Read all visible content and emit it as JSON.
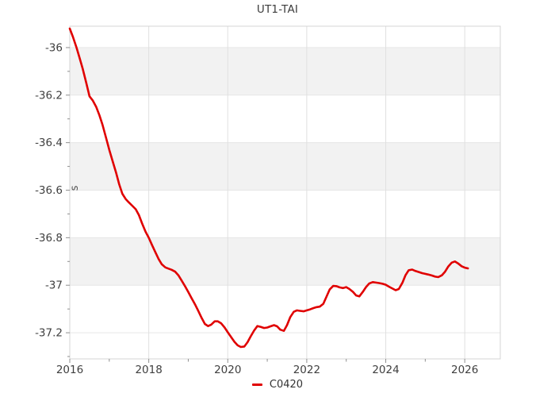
{
  "chart": {
    "title": "UT1-TAI",
    "legend": [
      {
        "label": "C0420"
      }
    ]
  },
  "style": {
    "line_color": "#e00000",
    "band_color": "#f2f2f2",
    "h_grid_color": "#e6e6e6",
    "v_grid_color": "#e0e0e0",
    "border_color": "#d4d4d4",
    "tick_color": "#8f8f8f",
    "label_color": "#3f3f3f",
    "unit_color": "#555555",
    "background": "#ffffff"
  },
  "chart_data": {
    "type": "line",
    "title": "UT1-TAI",
    "xlabel": "",
    "ylabel": "s",
    "xlim": [
      2016,
      2026.9
    ],
    "ylim": [
      -37.31,
      -35.91
    ],
    "grid": true,
    "legend_position": "bottom-center",
    "x_ticks_major": [
      2016,
      2018,
      2020,
      2022,
      2024,
      2026
    ],
    "x_tick_labels": [
      "2016",
      "2018",
      "2020",
      "2022",
      "2024",
      "2026"
    ],
    "x_ticks_minor": [
      2017,
      2019,
      2021,
      2023,
      2025
    ],
    "y_ticks_major": [
      -36,
      -36.2,
      -36.4,
      -36.6,
      -36.8,
      -37,
      -37.2
    ],
    "y_tick_labels": [
      "-36",
      "-36.2",
      "-36.4",
      "-36.6",
      "-36.8",
      "-37",
      "-37.2"
    ],
    "y_ticks_minor": [
      -36.1,
      -36.3,
      -36.5,
      -36.7,
      -36.9,
      -37.1,
      -37.3
    ],
    "series": [
      {
        "name": "C0420",
        "color": "#e00000",
        "points": [
          [
            2016.0,
            -35.92
          ],
          [
            2016.08,
            -35.955
          ],
          [
            2016.17,
            -36.0
          ],
          [
            2016.25,
            -36.045
          ],
          [
            2016.33,
            -36.09
          ],
          [
            2016.42,
            -36.15
          ],
          [
            2016.5,
            -36.205
          ],
          [
            2016.58,
            -36.222
          ],
          [
            2016.67,
            -36.25
          ],
          [
            2016.75,
            -36.285
          ],
          [
            2016.83,
            -36.325
          ],
          [
            2016.92,
            -36.38
          ],
          [
            2017.0,
            -36.43
          ],
          [
            2017.08,
            -36.475
          ],
          [
            2017.17,
            -36.525
          ],
          [
            2017.25,
            -36.575
          ],
          [
            2017.33,
            -36.615
          ],
          [
            2017.42,
            -36.638
          ],
          [
            2017.5,
            -36.652
          ],
          [
            2017.58,
            -36.665
          ],
          [
            2017.67,
            -36.68
          ],
          [
            2017.75,
            -36.705
          ],
          [
            2017.83,
            -36.74
          ],
          [
            2017.92,
            -36.775
          ],
          [
            2018.0,
            -36.8
          ],
          [
            2018.08,
            -36.83
          ],
          [
            2018.17,
            -36.862
          ],
          [
            2018.25,
            -36.89
          ],
          [
            2018.33,
            -36.912
          ],
          [
            2018.42,
            -36.925
          ],
          [
            2018.5,
            -36.93
          ],
          [
            2018.58,
            -36.935
          ],
          [
            2018.67,
            -36.943
          ],
          [
            2018.75,
            -36.958
          ],
          [
            2018.83,
            -36.98
          ],
          [
            2018.92,
            -37.005
          ],
          [
            2019.0,
            -37.028
          ],
          [
            2019.08,
            -37.053
          ],
          [
            2019.17,
            -37.08
          ],
          [
            2019.25,
            -37.107
          ],
          [
            2019.33,
            -37.135
          ],
          [
            2019.42,
            -37.163
          ],
          [
            2019.5,
            -37.172
          ],
          [
            2019.58,
            -37.166
          ],
          [
            2019.67,
            -37.152
          ],
          [
            2019.75,
            -37.152
          ],
          [
            2019.83,
            -37.16
          ],
          [
            2019.92,
            -37.178
          ],
          [
            2020.0,
            -37.198
          ],
          [
            2020.08,
            -37.217
          ],
          [
            2020.17,
            -37.238
          ],
          [
            2020.25,
            -37.253
          ],
          [
            2020.33,
            -37.26
          ],
          [
            2020.42,
            -37.258
          ],
          [
            2020.5,
            -37.24
          ],
          [
            2020.58,
            -37.215
          ],
          [
            2020.67,
            -37.19
          ],
          [
            2020.75,
            -37.172
          ],
          [
            2020.83,
            -37.175
          ],
          [
            2020.92,
            -37.18
          ],
          [
            2021.0,
            -37.178
          ],
          [
            2021.08,
            -37.173
          ],
          [
            2021.17,
            -37.168
          ],
          [
            2021.25,
            -37.173
          ],
          [
            2021.33,
            -37.187
          ],
          [
            2021.42,
            -37.192
          ],
          [
            2021.5,
            -37.168
          ],
          [
            2021.58,
            -37.135
          ],
          [
            2021.67,
            -37.112
          ],
          [
            2021.75,
            -37.106
          ],
          [
            2021.83,
            -37.108
          ],
          [
            2021.92,
            -37.11
          ],
          [
            2022.0,
            -37.106
          ],
          [
            2022.08,
            -37.102
          ],
          [
            2022.17,
            -37.096
          ],
          [
            2022.25,
            -37.092
          ],
          [
            2022.33,
            -37.09
          ],
          [
            2022.42,
            -37.078
          ],
          [
            2022.5,
            -37.048
          ],
          [
            2022.58,
            -37.018
          ],
          [
            2022.67,
            -37.003
          ],
          [
            2022.75,
            -37.004
          ],
          [
            2022.83,
            -37.009
          ],
          [
            2022.92,
            -37.012
          ],
          [
            2023.0,
            -37.008
          ],
          [
            2023.08,
            -37.016
          ],
          [
            2023.17,
            -37.028
          ],
          [
            2023.25,
            -37.043
          ],
          [
            2023.33,
            -37.047
          ],
          [
            2023.42,
            -37.028
          ],
          [
            2023.5,
            -37.008
          ],
          [
            2023.58,
            -36.993
          ],
          [
            2023.67,
            -36.987
          ],
          [
            2023.75,
            -36.989
          ],
          [
            2023.83,
            -36.991
          ],
          [
            2023.92,
            -36.994
          ],
          [
            2024.0,
            -36.998
          ],
          [
            2024.08,
            -37.006
          ],
          [
            2024.17,
            -37.014
          ],
          [
            2024.25,
            -37.021
          ],
          [
            2024.33,
            -37.016
          ],
          [
            2024.42,
            -36.99
          ],
          [
            2024.5,
            -36.958
          ],
          [
            2024.58,
            -36.937
          ],
          [
            2024.67,
            -36.934
          ],
          [
            2024.75,
            -36.94
          ],
          [
            2024.83,
            -36.944
          ],
          [
            2024.92,
            -36.949
          ],
          [
            2025.0,
            -36.952
          ],
          [
            2025.08,
            -36.955
          ],
          [
            2025.17,
            -36.959
          ],
          [
            2025.25,
            -36.964
          ],
          [
            2025.33,
            -36.966
          ],
          [
            2025.42,
            -36.958
          ],
          [
            2025.5,
            -36.943
          ],
          [
            2025.58,
            -36.922
          ],
          [
            2025.67,
            -36.905
          ],
          [
            2025.75,
            -36.9
          ],
          [
            2025.83,
            -36.908
          ],
          [
            2025.92,
            -36.92
          ],
          [
            2026.0,
            -36.926
          ],
          [
            2026.08,
            -36.929
          ]
        ]
      }
    ]
  }
}
